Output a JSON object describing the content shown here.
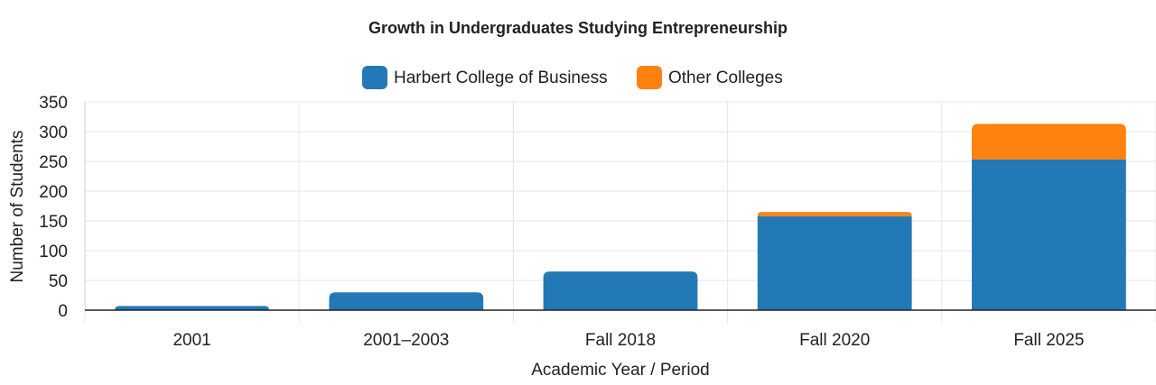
{
  "chart_data": {
    "type": "bar",
    "stacked": true,
    "title": "Growth in Undergraduates Studying Entrepreneurship",
    "xlabel": "Academic Year / Period",
    "ylabel": "Number of Students",
    "categories": [
      "2001",
      "2001–2003",
      "Fall 2018",
      "Fall 2020",
      "Fall 2025"
    ],
    "series": [
      {
        "name": "Harbert College of Business",
        "values": [
          7,
          30,
          65,
          158,
          253
        ],
        "color": "#2379b6"
      },
      {
        "name": "Other Colleges",
        "values": [
          0,
          0,
          0,
          7,
          60
        ],
        "color": "#ff8210"
      }
    ],
    "ylim": [
      0,
      350
    ],
    "yticks": [
      0,
      50,
      100,
      150,
      200,
      250,
      300,
      350
    ],
    "grid": true,
    "legend": "top-center"
  }
}
